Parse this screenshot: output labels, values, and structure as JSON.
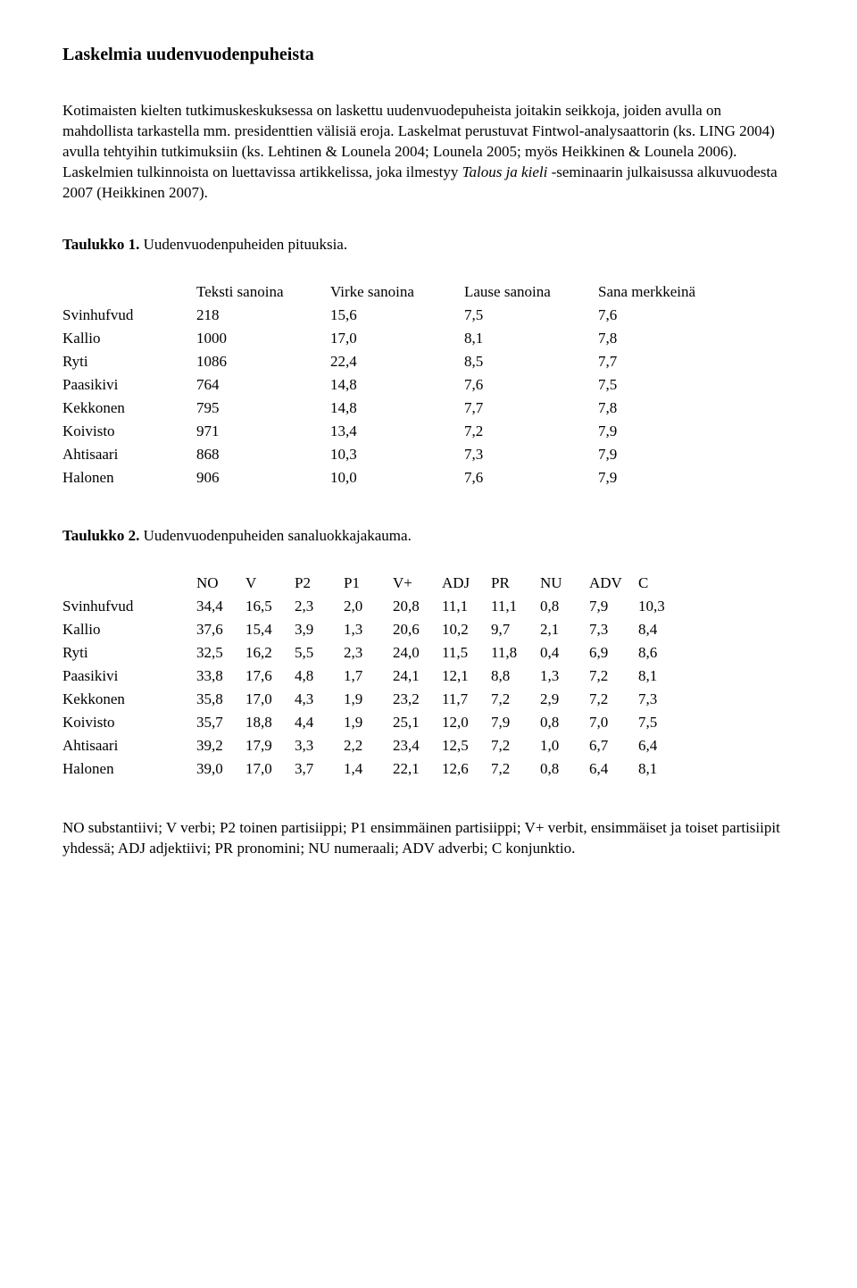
{
  "title": "Laskelmia uudenvuodenpuheista",
  "intro": {
    "p1a": "Kotimaisten kielten tutkimuskeskuksessa on laskettu uudenvuodepuheista joitakin seikkoja, joiden avulla on mahdollista tarkastella mm. presidenttien välisiä eroja. Laskelmat perustuvat Fintwol-analysaattorin (ks. LING 2004) avulla tehtyihin tutkimuksiin (ks. Lehtinen & Lounela 2004; Lounela 2005; myös Heikkinen & Lounela 2006). Laskelmien tulkinnoista on luettavissa artikkelissa, joka ilmestyy ",
    "p1i": "Talous ja kieli",
    "p1b": " -seminaarin julkaisussa alkuvuodesta 2007 (Heikkinen 2007)."
  },
  "table1": {
    "caption_b": "Taulukko 1.",
    "caption_r": " Uudenvuodenpuheiden pituuksia.",
    "headers": [
      "",
      "Teksti sanoina",
      "Virke sanoina",
      "Lause sanoina",
      "Sana merkkeinä"
    ],
    "rows": [
      {
        "label": "Svinhufvud",
        "c": [
          "218",
          "15,6",
          "7,5",
          "7,6"
        ]
      },
      {
        "label": "Kallio",
        "c": [
          "1000",
          "17,0",
          "8,1",
          "7,8"
        ]
      },
      {
        "label": "Ryti",
        "c": [
          "1086",
          "22,4",
          "8,5",
          "7,7"
        ]
      },
      {
        "label": "Paasikivi",
        "c": [
          "764",
          "14,8",
          "7,6",
          "7,5"
        ]
      },
      {
        "label": "Kekkonen",
        "c": [
          "795",
          "14,8",
          "7,7",
          "7,8"
        ]
      },
      {
        "label": "Koivisto",
        "c": [
          "971",
          "13,4",
          "7,2",
          "7,9"
        ]
      },
      {
        "label": "Ahtisaari",
        "c": [
          "868",
          "10,3",
          "7,3",
          "7,9"
        ]
      },
      {
        "label": "Halonen",
        "c": [
          "906",
          "10,0",
          "7,6",
          "7,9"
        ]
      }
    ]
  },
  "table2": {
    "caption_b": "Taulukko 2.",
    "caption_r": " Uudenvuodenpuheiden sanaluokkajakauma.",
    "headers": [
      "",
      "NO",
      "V",
      "P2",
      "P1",
      "V+",
      "ADJ",
      "PR",
      "NU",
      "ADV",
      "C"
    ],
    "rows": [
      {
        "label": "Svinhufvud",
        "c": [
          "34,4",
          "16,5",
          "2,3",
          "2,0",
          "20,8",
          "11,1",
          "11,1",
          "0,8",
          "7,9",
          "10,3"
        ]
      },
      {
        "label": "Kallio",
        "c": [
          "37,6",
          "15,4",
          "3,9",
          "1,3",
          "20,6",
          "10,2",
          "9,7",
          "2,1",
          "7,3",
          "8,4"
        ]
      },
      {
        "label": "Ryti",
        "c": [
          "32,5",
          "16,2",
          "5,5",
          "2,3",
          "24,0",
          "11,5",
          "11,8",
          "0,4",
          "6,9",
          "8,6"
        ]
      },
      {
        "label": "Paasikivi",
        "c": [
          "33,8",
          "17,6",
          "4,8",
          "1,7",
          "24,1",
          "12,1",
          "8,8",
          "1,3",
          "7,2",
          "8,1"
        ]
      },
      {
        "label": "Kekkonen",
        "c": [
          "35,8",
          "17,0",
          "4,3",
          "1,9",
          "23,2",
          "11,7",
          "7,2",
          "2,9",
          "7,2",
          "7,3"
        ]
      },
      {
        "label": "Koivisto",
        "c": [
          "35,7",
          "18,8",
          "4,4",
          "1,9",
          "25,1",
          "12,0",
          "7,9",
          "0,8",
          "7,0",
          "7,5"
        ]
      },
      {
        "label": "Ahtisaari",
        "c": [
          "39,2",
          "17,9",
          "3,3",
          "2,2",
          "23,4",
          "12,5",
          "7,2",
          "1,0",
          "6,7",
          "6,4"
        ]
      },
      {
        "label": "Halonen",
        "c": [
          "39,0",
          "17,0",
          "3,7",
          "1,4",
          "22,1",
          "12,6",
          "7,2",
          "0,8",
          "6,4",
          "8,1"
        ]
      }
    ]
  },
  "legend": "NO substantiivi; V verbi; P2 toinen partisiippi; P1 ensimmäinen partisiippi; V+ verbit, ensimmäiset ja toiset partisiipit yhdessä; ADJ adjektiivi; PR pronomini; NU numeraali; ADV adverbi; C konjunktio."
}
